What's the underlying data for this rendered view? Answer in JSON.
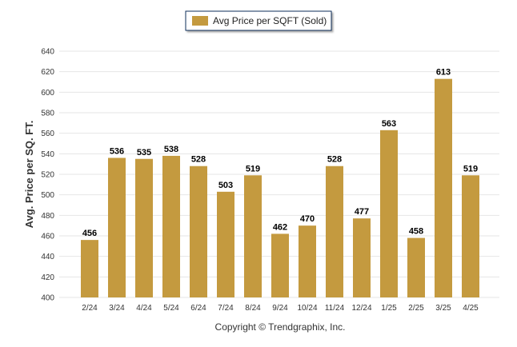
{
  "chart_data": {
    "type": "bar",
    "categories": [
      "2/24",
      "3/24",
      "4/24",
      "5/24",
      "6/24",
      "7/24",
      "8/24",
      "9/24",
      "10/24",
      "11/24",
      "12/24",
      "1/25",
      "2/25",
      "3/25",
      "4/25"
    ],
    "series": [
      {
        "name": "Avg Price per SQFT (Sold)",
        "values": [
          456,
          536,
          535,
          538,
          528,
          503,
          519,
          462,
          470,
          528,
          477,
          563,
          458,
          613,
          519
        ],
        "color": "#C49A3F"
      }
    ],
    "xlabel": "",
    "ylabel": "Avg. Price per SQ. FT.",
    "ylim": [
      400,
      640
    ],
    "yticks": [
      400,
      420,
      440,
      460,
      480,
      500,
      520,
      540,
      560,
      580,
      600,
      620,
      640
    ],
    "grid": true,
    "legend_position": "top-center",
    "data_labels": true
  },
  "footer": {
    "text": "Copyright © Trendgraphix, Inc."
  },
  "colors": {
    "bar": "#C49A3F",
    "grid": "#e6e6e6",
    "legend_border": "#0d2e5a"
  }
}
